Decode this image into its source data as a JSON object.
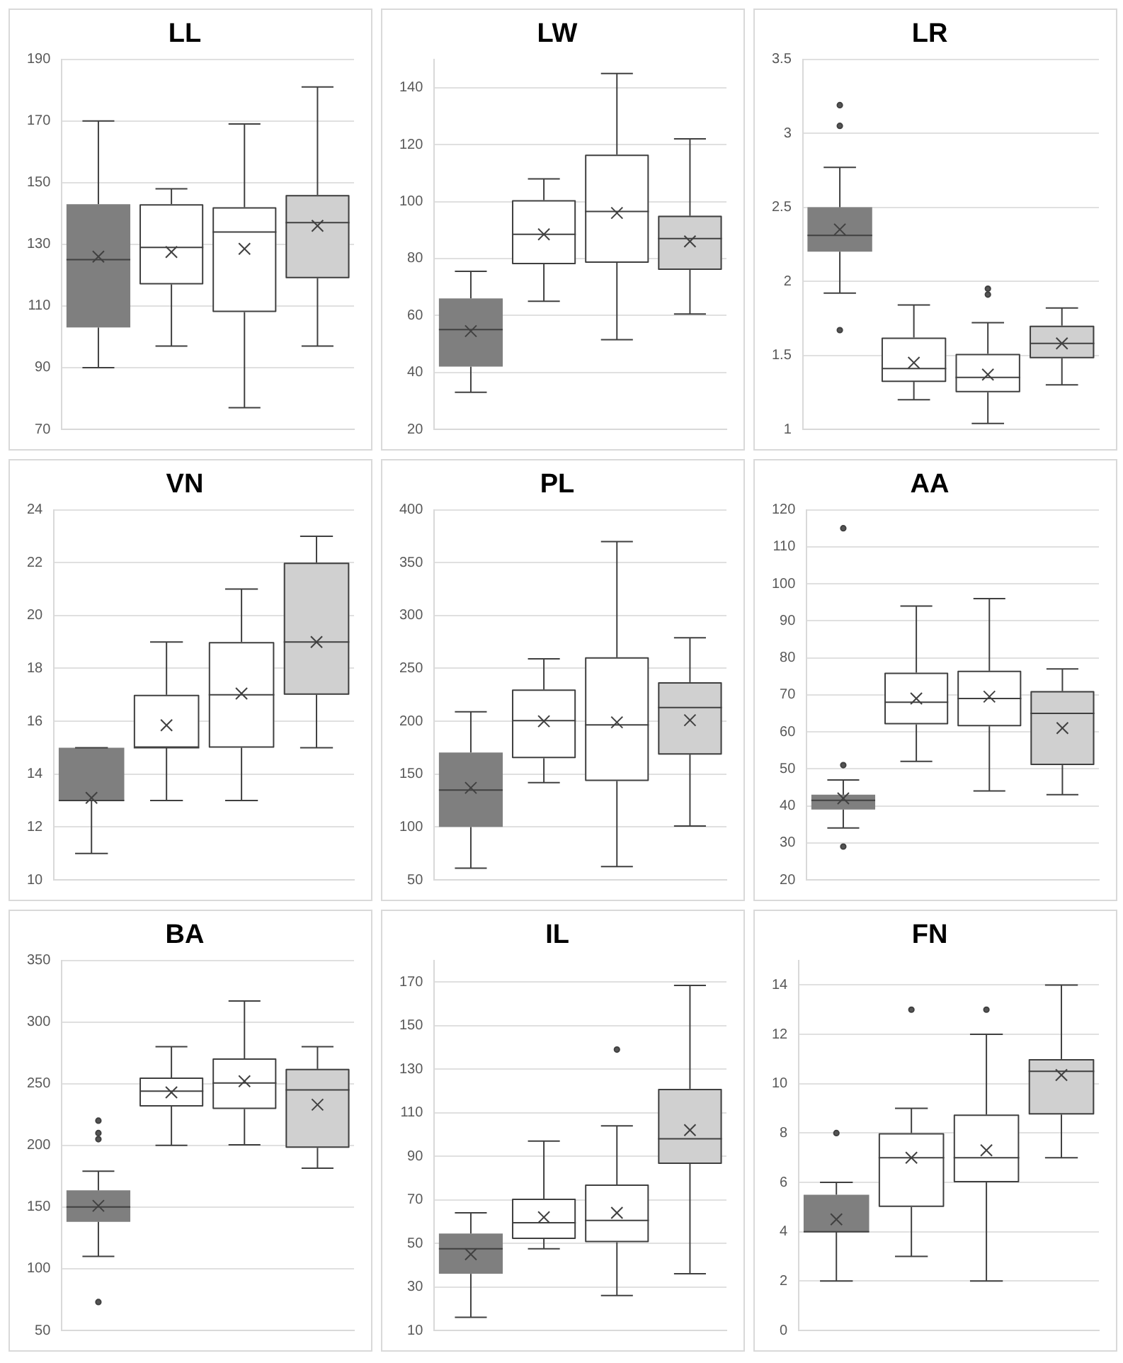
{
  "chart_data": [
    {
      "type": "box",
      "title": "LL",
      "categories": [
        null,
        null,
        null,
        null
      ],
      "colors": [
        "#7f7f7f",
        "#ffffff",
        "#ffffff",
        "#d0d0d0"
      ],
      "ylim": [
        70,
        190
      ],
      "yticks": [
        70,
        90,
        110,
        130,
        150,
        170,
        190
      ],
      "grid": "y",
      "boxes": [
        {
          "low": 90,
          "q1": 103,
          "median": 125,
          "q3": 143,
          "high": 170,
          "mean": 126
        },
        {
          "low": 97,
          "q1": 117,
          "median": 129,
          "q3": 143,
          "high": 148,
          "mean": 127.5
        },
        {
          "low": 77,
          "q1": 108,
          "median": 134,
          "q3": 142,
          "high": 169,
          "mean": 128.5
        },
        {
          "low": 97,
          "q1": 119,
          "median": 137,
          "q3": 146,
          "high": 181,
          "mean": 136
        }
      ]
    },
    {
      "type": "box",
      "title": "LW",
      "categories": [
        null,
        null,
        null,
        null
      ],
      "colors": [
        "#7f7f7f",
        "#ffffff",
        "#ffffff",
        "#d0d0d0"
      ],
      "ylim": [
        20,
        150
      ],
      "yticks": [
        20,
        40,
        60,
        80,
        100,
        120,
        140
      ],
      "grid": "y",
      "boxes": [
        {
          "low": 33,
          "q1": 42,
          "median": 55,
          "q3": 66,
          "high": 75.5,
          "mean": 54.5
        },
        {
          "low": 65,
          "q1": 78,
          "median": 88.5,
          "q3": 100.5,
          "high": 108,
          "mean": 88.5
        },
        {
          "low": 51.5,
          "q1": 78.5,
          "median": 96.5,
          "q3": 116.5,
          "high": 145,
          "mean": 96
        },
        {
          "low": 60.5,
          "q1": 76,
          "median": 87,
          "q3": 95,
          "high": 122,
          "mean": 86
        }
      ]
    },
    {
      "type": "box",
      "title": "LR",
      "categories": [
        null,
        null,
        null,
        null
      ],
      "colors": [
        "#7f7f7f",
        "#ffffff",
        "#ffffff",
        "#d0d0d0"
      ],
      "ylim": [
        1,
        3.5
      ],
      "yticks": [
        1,
        1.5,
        2,
        2.5,
        3,
        3.5
      ],
      "grid": "y",
      "boxes": [
        {
          "low": 1.92,
          "q1": 2.2,
          "median": 2.31,
          "q3": 2.5,
          "high": 2.77,
          "mean": 2.35,
          "outliers": [
            3.19,
            3.05,
            1.67
          ]
        },
        {
          "low": 1.2,
          "q1": 1.32,
          "median": 1.41,
          "q3": 1.62,
          "high": 1.84,
          "mean": 1.45
        },
        {
          "low": 1.04,
          "q1": 1.25,
          "median": 1.35,
          "q3": 1.51,
          "high": 1.72,
          "mean": 1.37,
          "outliers": [
            1.95,
            1.91
          ]
        },
        {
          "low": 1.3,
          "q1": 1.48,
          "median": 1.58,
          "q3": 1.7,
          "high": 1.82,
          "mean": 1.58
        }
      ]
    },
    {
      "type": "box",
      "title": "VN",
      "categories": [
        null,
        null,
        null,
        null
      ],
      "colors": [
        "#7f7f7f",
        "#ffffff",
        "#ffffff",
        "#d0d0d0"
      ],
      "ylim": [
        10,
        24
      ],
      "yticks": [
        10,
        12,
        14,
        16,
        18,
        20,
        22,
        24
      ],
      "grid": "y",
      "boxes": [
        {
          "low": 11,
          "q1": 13,
          "median": 13,
          "q3": 15,
          "high": 15,
          "mean": 13.1
        },
        {
          "low": 13,
          "q1": 15,
          "median": 15,
          "q3": 17,
          "high": 19,
          "mean": 15.85
        },
        {
          "low": 13,
          "q1": 15,
          "median": 17,
          "q3": 19,
          "high": 21,
          "mean": 17.05
        },
        {
          "low": 15,
          "q1": 17,
          "median": 19,
          "q3": 22,
          "high": 23,
          "mean": 19
        }
      ]
    },
    {
      "type": "box",
      "title": "PL",
      "categories": [
        null,
        null,
        null,
        null
      ],
      "colors": [
        "#7f7f7f",
        "#ffffff",
        "#ffffff",
        "#d0d0d0"
      ],
      "ylim": [
        50,
        400
      ],
      "yticks": [
        50,
        100,
        150,
        200,
        250,
        300,
        350,
        400
      ],
      "grid": "y",
      "boxes": [
        {
          "low": 61,
          "q1": 100,
          "median": 135,
          "q3": 170.5,
          "high": 209,
          "mean": 137
        },
        {
          "low": 142,
          "q1": 165,
          "median": 200.5,
          "q3": 230,
          "high": 259,
          "mean": 200
        },
        {
          "low": 62.5,
          "q1": 143.5,
          "median": 196.5,
          "q3": 260.5,
          "high": 370,
          "mean": 199
        },
        {
          "low": 101,
          "q1": 168.5,
          "median": 213,
          "q3": 237,
          "high": 279,
          "mean": 201
        }
      ]
    },
    {
      "type": "box",
      "title": "AA",
      "categories": [
        null,
        null,
        null,
        null
      ],
      "colors": [
        "#7f7f7f",
        "#ffffff",
        "#ffffff",
        "#d0d0d0"
      ],
      "ylim": [
        20,
        120
      ],
      "yticks": [
        20,
        30,
        40,
        50,
        60,
        70,
        80,
        90,
        100,
        110,
        120
      ],
      "grid": "y",
      "boxes": [
        {
          "low": 34,
          "q1": 39,
          "median": 41.5,
          "q3": 43,
          "high": 47,
          "mean": 42,
          "outliers": [
            115,
            51,
            29
          ]
        },
        {
          "low": 52,
          "q1": 62,
          "median": 68,
          "q3": 76,
          "high": 94,
          "mean": 69
        },
        {
          "low": 44,
          "q1": 61.5,
          "median": 69,
          "q3": 76.5,
          "high": 96,
          "mean": 69.5
        },
        {
          "low": 43,
          "q1": 51,
          "median": 65,
          "q3": 71,
          "high": 77,
          "mean": 61
        }
      ]
    },
    {
      "type": "box",
      "title": "BA",
      "categories": [
        null,
        null,
        null,
        null
      ],
      "colors": [
        "#7f7f7f",
        "#ffffff",
        "#ffffff",
        "#d0d0d0"
      ],
      "ylim": [
        50,
        350
      ],
      "yticks": [
        50,
        100,
        150,
        200,
        250,
        300,
        350
      ],
      "grid": "y",
      "boxes": [
        {
          "low": 110,
          "q1": 138,
          "median": 150,
          "q3": 163.5,
          "high": 179,
          "mean": 151,
          "outliers": [
            220,
            210,
            205,
            73
          ]
        },
        {
          "low": 200,
          "q1": 231.5,
          "median": 244,
          "q3": 255,
          "high": 280,
          "mean": 243
        },
        {
          "low": 200.5,
          "q1": 229.5,
          "median": 250.5,
          "q3": 270.5,
          "high": 317,
          "mean": 252
        },
        {
          "low": 181.5,
          "q1": 198,
          "median": 245,
          "q3": 262,
          "high": 280,
          "mean": 233
        }
      ]
    },
    {
      "type": "box",
      "title": "IL",
      "categories": [
        null,
        null,
        null,
        null
      ],
      "colors": [
        "#7f7f7f",
        "#ffffff",
        "#ffffff",
        "#d0d0d0"
      ],
      "ylim": [
        10,
        180
      ],
      "yticks": [
        10,
        30,
        50,
        70,
        90,
        110,
        130,
        150,
        170
      ],
      "grid": "y",
      "boxes": [
        {
          "low": 16,
          "q1": 36,
          "median": 47.5,
          "q3": 54.5,
          "high": 64,
          "mean": 45
        },
        {
          "low": 47.5,
          "q1": 52,
          "median": 59.5,
          "q3": 70.5,
          "high": 97,
          "mean": 62
        },
        {
          "low": 26,
          "q1": 50.5,
          "median": 60.5,
          "q3": 77,
          "high": 104,
          "mean": 64,
          "outliers": [
            139
          ]
        },
        {
          "low": 36,
          "q1": 86.5,
          "median": 98,
          "q3": 121,
          "high": 168.5,
          "mean": 102
        }
      ]
    },
    {
      "type": "box",
      "title": "FN",
      "categories": [
        null,
        null,
        null,
        null
      ],
      "colors": [
        "#7f7f7f",
        "#ffffff",
        "#ffffff",
        "#d0d0d0"
      ],
      "ylim": [
        0,
        15
      ],
      "yticks": [
        0,
        2,
        4,
        6,
        8,
        10,
        12,
        14
      ],
      "grid": "y",
      "boxes": [
        {
          "low": 2,
          "q1": 4,
          "median": 4,
          "q3": 5.5,
          "high": 6,
          "mean": 4.5,
          "outliers": [
            8
          ]
        },
        {
          "low": 3,
          "q1": 5,
          "median": 7,
          "q3": 8,
          "high": 9,
          "mean": 7,
          "outliers": [
            13
          ]
        },
        {
          "low": 2,
          "q1": 6,
          "median": 7,
          "q3": 8.75,
          "high": 12,
          "mean": 7.3,
          "outliers": [
            13
          ]
        },
        {
          "low": 7,
          "q1": 8.75,
          "median": 10.5,
          "q3": 11,
          "high": 14,
          "mean": 10.35
        }
      ]
    }
  ]
}
